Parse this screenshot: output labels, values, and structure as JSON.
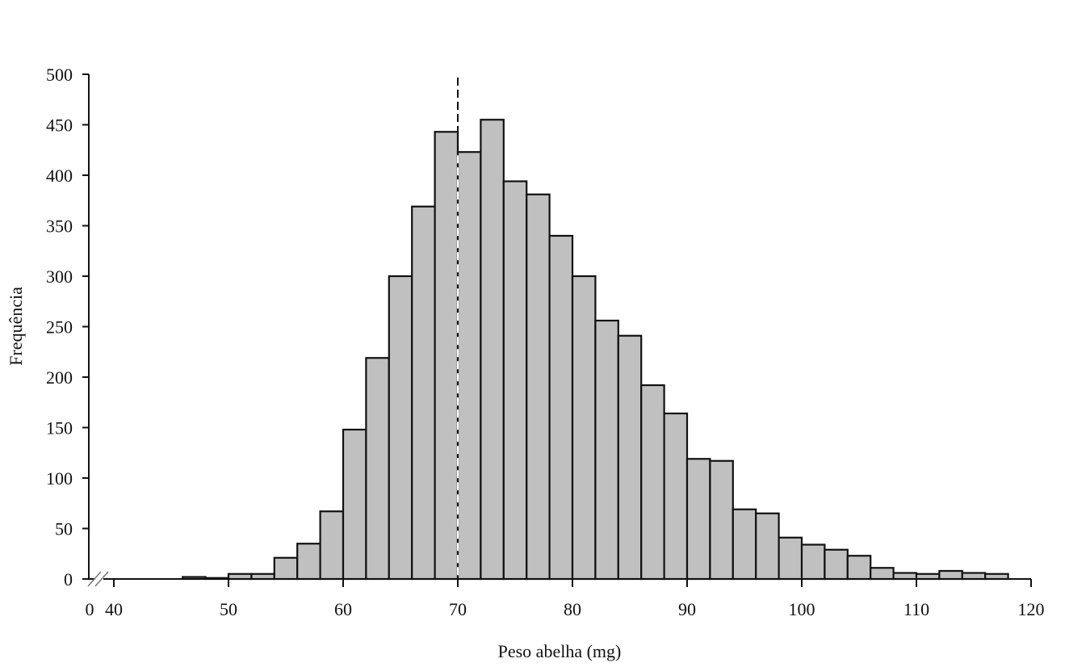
{
  "chart_data": {
    "type": "bar",
    "subtype": "histogram",
    "title": "",
    "xlabel": "Peso abelha (mg)",
    "ylabel": "Frequência",
    "xlim": [
      40,
      120
    ],
    "ylim": [
      0,
      500
    ],
    "x_axis_break": true,
    "x_ticks": [
      "0",
      "40",
      "50",
      "60",
      "70",
      "80",
      "90",
      "100",
      "110",
      "120"
    ],
    "y_ticks": [
      "0",
      "50",
      "100",
      "150",
      "200",
      "250",
      "300",
      "350",
      "400",
      "450",
      "500"
    ],
    "bin_width": 2,
    "bin_starts": [
      46,
      48,
      50,
      52,
      54,
      56,
      58,
      60,
      62,
      64,
      66,
      68,
      70,
      72,
      74,
      76,
      78,
      80,
      82,
      84,
      86,
      88,
      90,
      92,
      94,
      96,
      98,
      100,
      102,
      104,
      106,
      108,
      110,
      112,
      114,
      116
    ],
    "values": [
      2,
      1,
      5,
      5,
      21,
      35,
      67,
      148,
      219,
      300,
      369,
      443,
      423,
      455,
      394,
      381,
      340,
      300,
      256,
      241,
      192,
      164,
      119,
      117,
      69,
      65,
      41,
      34,
      29,
      23,
      11,
      6,
      5,
      8,
      6,
      5
    ],
    "reference_line": {
      "x": 70,
      "style": "dashed",
      "label": ""
    },
    "bar_color": "#c0c0c0",
    "edge_color": "#111111",
    "grid": false,
    "legend": null
  }
}
